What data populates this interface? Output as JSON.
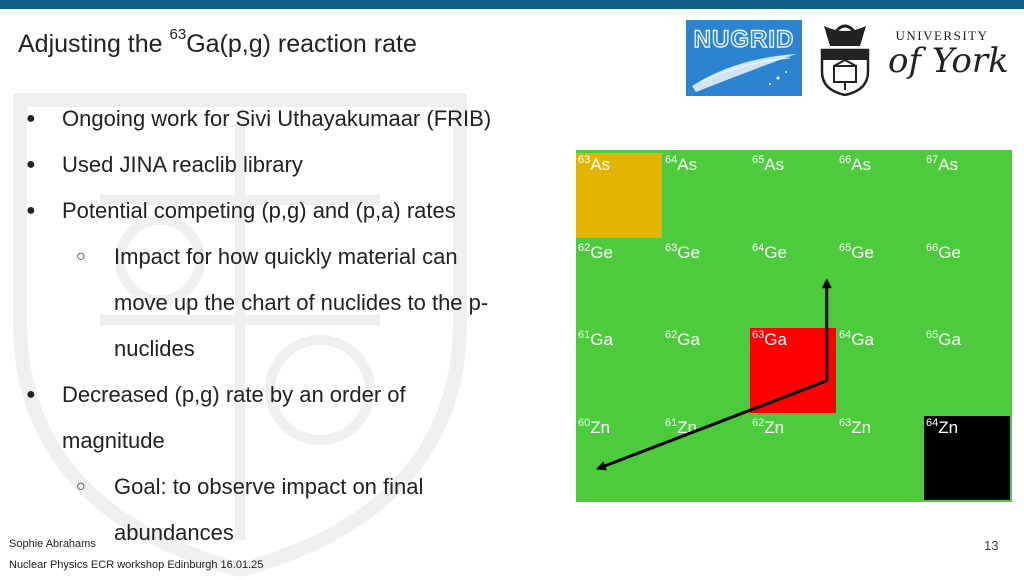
{
  "title": {
    "prefix": "Adjusting the ",
    "mass": "63",
    "suffix": "Ga(p,g) reaction rate"
  },
  "logos": {
    "nugrid": "NUGRID",
    "york_top": "UNIVERSITY",
    "york_script": "of York"
  },
  "bullets": [
    {
      "level": 1,
      "lines": [
        "Ongoing work for Sivi Uthayakumaar (FRIB)"
      ]
    },
    {
      "level": 1,
      "lines": [
        "Used JINA reaclib library"
      ]
    },
    {
      "level": 1,
      "lines": [
        "Potential competing (p,g) and (p,a) rates"
      ]
    },
    {
      "level": 2,
      "lines": [
        "Impact for how quickly material can",
        "move up the chart of nuclides to the p-",
        "nuclides"
      ]
    },
    {
      "level": 1,
      "lines": [
        "Decreased (p,g) rate by an order of",
        "magnitude"
      ]
    },
    {
      "level": 2,
      "lines": [
        "Goal: to observe impact on final",
        "abundances"
      ]
    }
  ],
  "footer": {
    "author": "Sophie Abrahams",
    "event": "Nuclear Physics ECR workshop Edinburgh 16.01.25",
    "page": "13"
  },
  "colors": {
    "accent_bar": "#0f5f82",
    "stable": "#000000",
    "target": "#ff0000",
    "highlight": "#e3b400",
    "default": "#4ccc3c"
  },
  "nuclide_rows": [
    {
      "element": "As",
      "cells": [
        {
          "mass": "63",
          "status": "highlight"
        },
        {
          "mass": "64",
          "status": "default"
        },
        {
          "mass": "65",
          "status": "default"
        },
        {
          "mass": "66",
          "status": "default"
        },
        {
          "mass": "67",
          "status": "default"
        }
      ]
    },
    {
      "element": "Ge",
      "cells": [
        {
          "mass": "62",
          "status": "default"
        },
        {
          "mass": "63",
          "status": "default"
        },
        {
          "mass": "64",
          "status": "default"
        },
        {
          "mass": "65",
          "status": "default"
        },
        {
          "mass": "66",
          "status": "default"
        }
      ]
    },
    {
      "element": "Ga",
      "cells": [
        {
          "mass": "61",
          "status": "default"
        },
        {
          "mass": "62",
          "status": "default"
        },
        {
          "mass": "63",
          "status": "target"
        },
        {
          "mass": "64",
          "status": "default"
        },
        {
          "mass": "65",
          "status": "default"
        }
      ]
    },
    {
      "element": "Zn",
      "cells": [
        {
          "mass": "60",
          "status": "default"
        },
        {
          "mass": "61",
          "status": "default"
        },
        {
          "mass": "62",
          "status": "default"
        },
        {
          "mass": "63",
          "status": "default"
        },
        {
          "mass": "64",
          "status": "stable"
        }
      ]
    }
  ],
  "reaction_arrows": [
    {
      "name": "pg-arrow",
      "reaction": "(p,g)",
      "from": [
        2,
        2
      ],
      "to": [
        2,
        1
      ]
    },
    {
      "name": "pa-arrow",
      "reaction": "(p,a)",
      "from": [
        2,
        2
      ],
      "to": [
        0,
        3
      ]
    }
  ]
}
